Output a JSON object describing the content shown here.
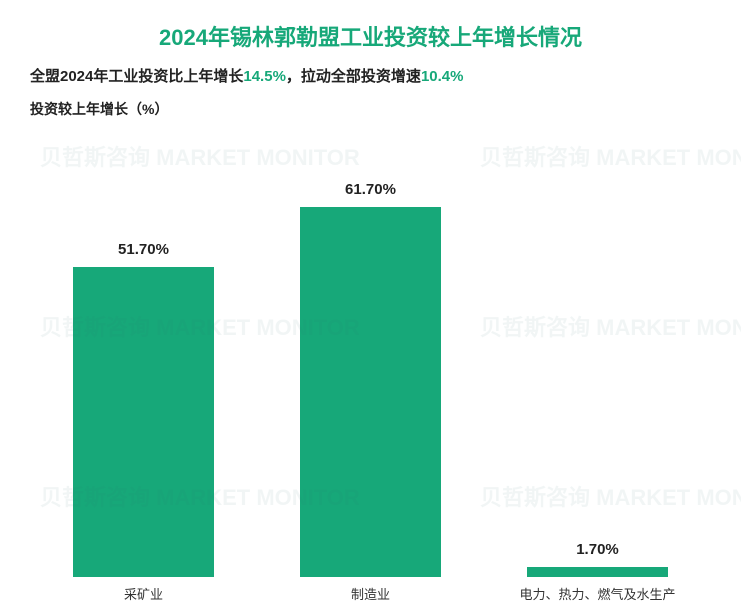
{
  "chart": {
    "type": "bar",
    "title": "2024年锡林郭勒盟工业投资较上年增长情况",
    "title_color": "#17a879",
    "title_fontsize": 22,
    "subtitle_parts": {
      "p1": "全盟2024年工业投资比上年增长",
      "v1": "14.5%",
      "p2": "，拉动全部投资增速",
      "v2": "10.4%"
    },
    "subtitle_fontsize": 15,
    "subtitle_text_color": "#222222",
    "subtitle_highlight_color": "#17a879",
    "ylabel": "投资较上年增长（%）",
    "ylabel_fontsize": 14,
    "ylabel_color": "#222222",
    "background_color": "#ffffff",
    "bar_color": "#17a879",
    "bar_width_ratio": 0.62,
    "value_label_fontsize": 15,
    "value_label_color": "#222222",
    "category_label_fontsize": 13,
    "category_label_color": "#333333",
    "ylim": [
      0,
      70
    ],
    "categories": [
      "采矿业",
      "制造业",
      "电力、热力、燃气及水生产"
    ],
    "values": [
      51.7,
      61.7,
      1.7
    ],
    "value_labels": [
      "51.70%",
      "61.70%",
      "1.70%"
    ]
  },
  "watermark": {
    "text": "贝哲斯咨询 MARKET MONITOR",
    "color": "#2b6b6b",
    "opacity": 0.06
  }
}
